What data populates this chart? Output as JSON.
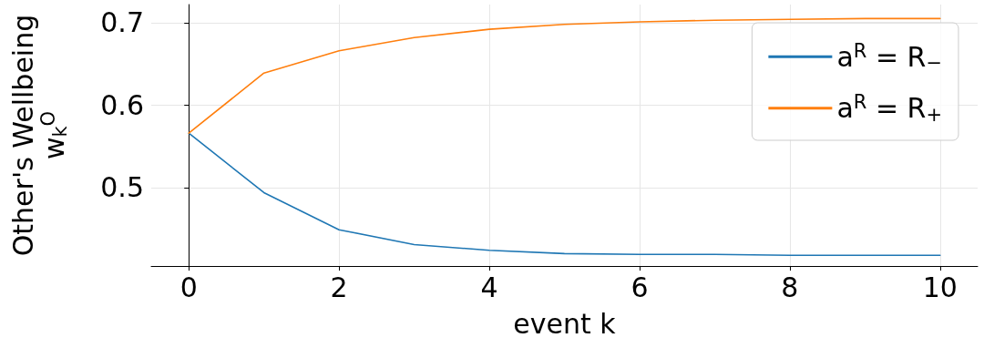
{
  "chart_data": {
    "type": "line",
    "xlabel": "event k",
    "ylabel": "Other's Wellbeing\nw$_{k}$$^{O}$",
    "x": [
      0,
      1,
      2,
      3,
      4,
      5,
      6,
      7,
      8,
      9,
      10
    ],
    "series": [
      {
        "name": "a$^{R}$ = R$_{−}$",
        "color": "#1f77b4",
        "values": [
          0.566,
          0.494,
          0.449,
          0.431,
          0.424,
          0.42,
          0.419,
          0.419,
          0.418,
          0.418,
          0.418
        ]
      },
      {
        "name": "a$^{R}$ = R$_{+}$",
        "color": "#ff7f0e",
        "values": [
          0.566,
          0.639,
          0.666,
          0.682,
          0.692,
          0.698,
          0.701,
          0.703,
          0.704,
          0.705,
          0.705
        ]
      }
    ],
    "xlim": [
      -0.5,
      10.5
    ],
    "xticks": [
      0,
      2,
      4,
      6,
      8,
      10
    ],
    "ylim": [
      0.405,
      0.722
    ],
    "yticks": [
      0.5,
      0.6,
      0.7
    ],
    "grid": true,
    "legend": "top right",
    "marker": "none",
    "line_style": "solid"
  }
}
